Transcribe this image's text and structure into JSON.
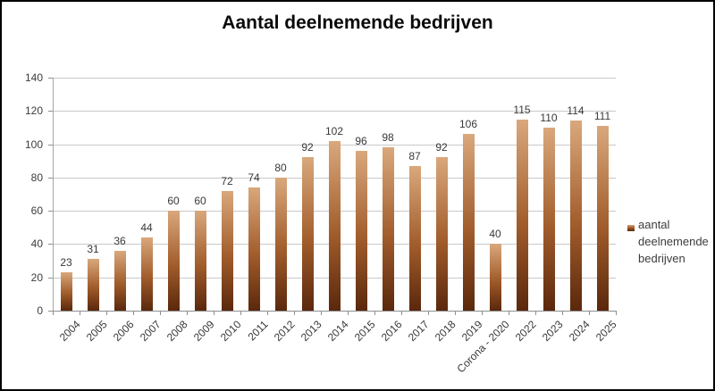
{
  "title": "Aantal deelnemende bedrijven",
  "legend": {
    "label": "aantal deelnemende bedrijven"
  },
  "chart_data": {
    "type": "bar",
    "title": "Aantal deelnemende bedrijven",
    "categories": [
      "2004",
      "2005",
      "2006",
      "2007",
      "2008",
      "2009",
      "2010",
      "2011",
      "2012",
      "2013",
      "2014",
      "2015",
      "2016",
      "2017",
      "2018",
      "2019",
      "Corona - 2020",
      "2022",
      "2023",
      "2024",
      "2025"
    ],
    "values": [
      23,
      31,
      36,
      44,
      60,
      60,
      72,
      74,
      80,
      92,
      102,
      96,
      98,
      87,
      92,
      106,
      40,
      115,
      110,
      114,
      111
    ],
    "xlabel": "",
    "ylabel": "",
    "ylim": [
      0,
      140
    ],
    "ytick_interval": 20,
    "yticks": [
      0,
      20,
      40,
      60,
      80,
      100,
      120,
      140
    ],
    "grid": true,
    "data_labels": true,
    "legend_entries": [
      "aantal deelnemende bedrijven"
    ],
    "legend_position": "right",
    "bar_gradient_top": "#d9a87c",
    "bar_gradient_mid": "#a15c2b",
    "bar_gradient_bottom": "#5a280c"
  },
  "colors": {
    "background": "#ffffff",
    "border": "#000000",
    "gridline": "#c9c9c9",
    "axis": "#8f8f8f",
    "text": "#3c3c3c",
    "title_text": "#0a0a0a"
  }
}
